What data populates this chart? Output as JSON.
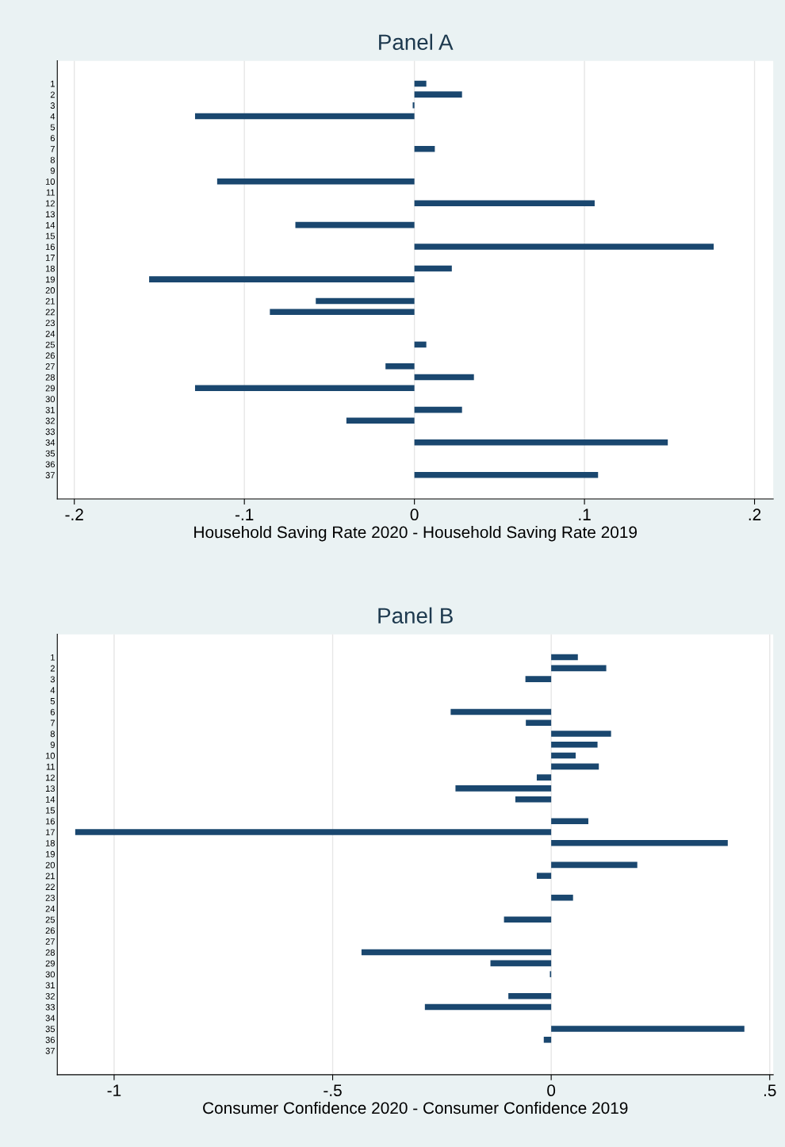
{
  "chart_data": [
    {
      "type": "bar",
      "orientation": "horizontal",
      "title": "Panel A",
      "xlabel": "Household Saving Rate 2020 - Household Saving Rate 2019",
      "categories": [
        "1",
        "2",
        "3",
        "4",
        "5",
        "6",
        "7",
        "8",
        "9",
        "10",
        "11",
        "12",
        "13",
        "14",
        "15",
        "16",
        "17",
        "18",
        "19",
        "20",
        "21",
        "22",
        "23",
        "24",
        "25",
        "26",
        "27",
        "28",
        "29",
        "30",
        "31",
        "32",
        "33",
        "34",
        "35",
        "36",
        "37"
      ],
      "series": [
        {
          "color": "#1a476f",
          "values": [
            0.007,
            0.028,
            -0.001,
            -0.129,
            null,
            null,
            0.012,
            null,
            null,
            -0.116,
            null,
            0.106,
            null,
            -0.07,
            null,
            0.176,
            null,
            0.022,
            -0.156,
            null,
            -0.058,
            -0.085,
            null,
            null,
            0.007,
            null,
            -0.017,
            0.035,
            -0.129,
            null,
            0.028,
            -0.04,
            null,
            0.149,
            null,
            null,
            0.108
          ]
        }
      ],
      "xlim": [
        -0.21,
        0.211
      ],
      "xticks": [
        {
          "value": -0.2,
          "label": "-.2"
        },
        {
          "value": -0.1,
          "label": "-.1"
        },
        0,
        {
          "value": 0.1,
          "label": ".1"
        },
        {
          "value": 0.2,
          "label": ".2"
        }
      ],
      "grid": "x"
    },
    {
      "type": "bar",
      "orientation": "horizontal",
      "title": "Panel B",
      "xlabel": "Consumer Confidence 2020 - Consumer Confidence 2019",
      "categories": [
        "1",
        "2",
        "3",
        "4",
        "5",
        "6",
        "7",
        "8",
        "9",
        "10",
        "11",
        "12",
        "13",
        "14",
        "15",
        "16",
        "17",
        "18",
        "19",
        "20",
        "21",
        "22",
        "23",
        "24",
        "25",
        "26",
        "27",
        "28",
        "29",
        "30",
        "31",
        "32",
        "33",
        "34",
        "35",
        "36",
        "37"
      ],
      "series": [
        {
          "color": "#1a476f",
          "values": [
            0.061,
            0.126,
            -0.059,
            null,
            null,
            -0.23,
            -0.058,
            0.137,
            0.106,
            0.056,
            0.109,
            -0.033,
            -0.219,
            -0.082,
            null,
            0.085,
            -1.089,
            0.404,
            null,
            0.197,
            -0.033,
            null,
            0.05,
            null,
            -0.108,
            null,
            null,
            -0.434,
            -0.139,
            -0.003,
            null,
            -0.098,
            -0.289,
            null,
            0.442,
            -0.017,
            null
          ]
        }
      ],
      "xlim": [
        -1.13,
        0.508
      ],
      "xticks": [
        -1,
        {
          "value": -0.5,
          "label": "-.5"
        },
        0,
        {
          "value": 0.5,
          "label": ".5"
        }
      ],
      "grid": "x"
    }
  ]
}
